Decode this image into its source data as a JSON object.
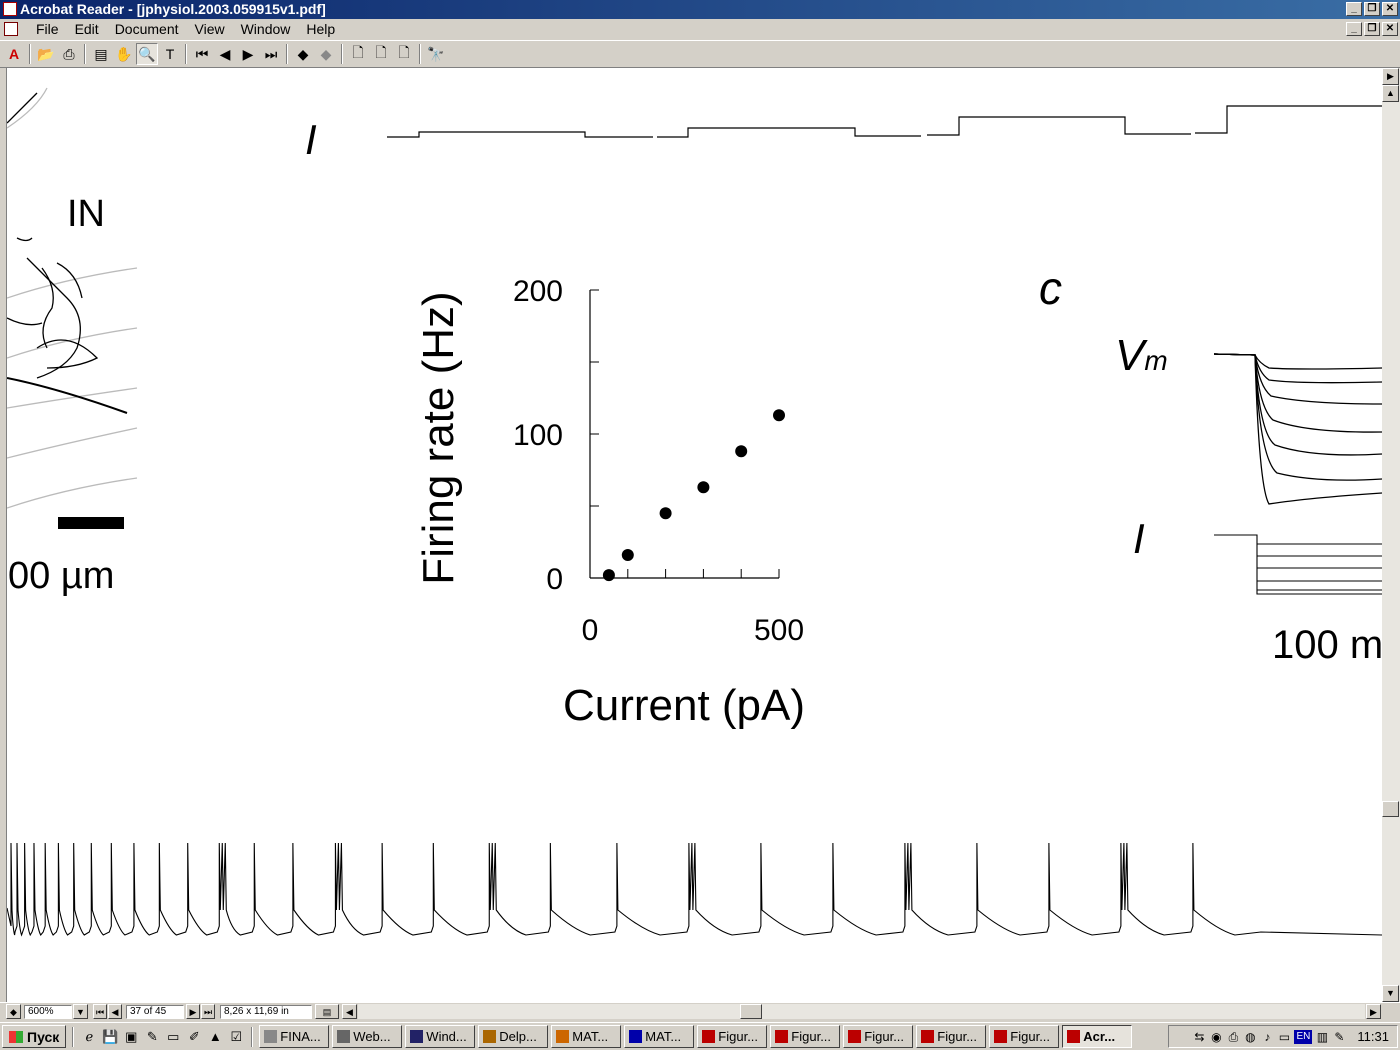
{
  "window": {
    "title": "Acrobat Reader - [jphysiol.2003.059915v1.pdf]",
    "buttons": [
      "_",
      "❐",
      "✕"
    ]
  },
  "menu": [
    "File",
    "Edit",
    "Document",
    "View",
    "Window",
    "Help"
  ],
  "toolbar": {
    "icons": [
      "acrobat-icon",
      "open-icon",
      "print-icon",
      "thumbnails-icon",
      "hand-icon",
      "zoom-icon",
      "text-select-icon",
      "first-page-icon",
      "prev-page-icon",
      "next-page-icon",
      "last-page-icon",
      "go-back-icon",
      "go-forward-icon",
      "actual-size-icon",
      "fit-page-icon",
      "fit-width-icon",
      "find-icon"
    ]
  },
  "figure": {
    "label_I_top": "I",
    "label_IN": "IN",
    "scale_bar_label": "00 µm",
    "label_c": "c",
    "label_vm": "V",
    "label_vm_sub": "m",
    "label_I_c": "I",
    "time_scale_label": "100 m"
  },
  "chart_data": {
    "type": "scatter",
    "ylabel": "Firing rate (Hz)",
    "xlabel": "Current (pA)",
    "xticks": [
      "0",
      "500"
    ],
    "yticks": [
      "0",
      "100",
      "200"
    ],
    "xlim": [
      0,
      500
    ],
    "ylim": [
      0,
      200
    ],
    "x": [
      50,
      100,
      200,
      300,
      400,
      500
    ],
    "y": [
      2,
      16,
      45,
      63,
      88,
      113
    ]
  },
  "status": {
    "zoom": "600%",
    "page": "37 of 45",
    "page_size": "8,26 x 11,69 in"
  },
  "taskbar": {
    "start": "Пуск",
    "tasks": [
      "FINA...",
      "Web...",
      "Wind...",
      "Delp...",
      "MAT...",
      "MAT...",
      "Figur...",
      "Figur...",
      "Figur...",
      "Figur...",
      "Figur...",
      "Acr..."
    ],
    "clock": "11:31",
    "lang": "EN"
  }
}
